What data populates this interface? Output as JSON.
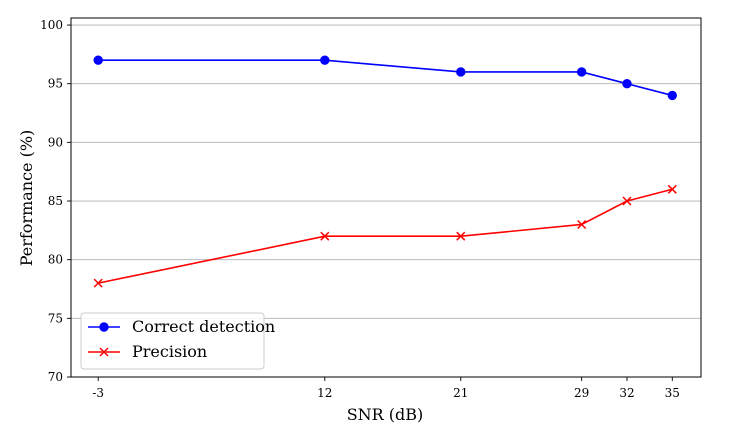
{
  "chart_data": {
    "type": "line",
    "title": "",
    "xlabel": "SNR (dB)",
    "ylabel": "Performance (%)",
    "x": [
      -3,
      12,
      21,
      29,
      32,
      35
    ],
    "x_tick_labels": [
      "-3",
      "12",
      "21",
      "29",
      "32",
      "35"
    ],
    "xlim": [
      -4.8,
      36.9
    ],
    "ylim": [
      70,
      100.6
    ],
    "y_ticks": [
      70,
      75,
      80,
      85,
      90,
      95,
      100
    ],
    "grid": "horizontal",
    "legend_position": "lower-left",
    "series": [
      {
        "name": "Correct detection",
        "values": [
          97,
          97,
          96,
          96,
          95,
          94
        ],
        "color": "#0000ff",
        "marker": "circle"
      },
      {
        "name": "Precision",
        "values": [
          78,
          82,
          82,
          83,
          85,
          86
        ],
        "color": "#ff0000",
        "marker": "x"
      }
    ]
  }
}
